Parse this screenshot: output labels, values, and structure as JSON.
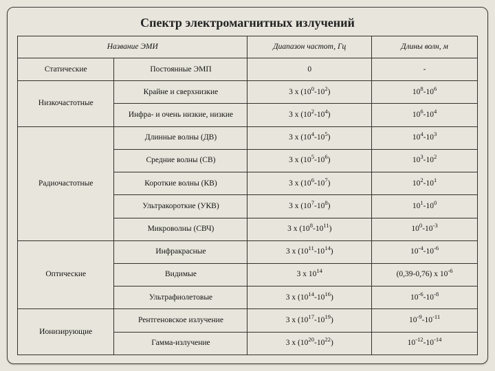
{
  "title": "Спектр электромагнитных излучений",
  "headers": {
    "col12": "Название ЭМИ",
    "col3": "Диапазон частот, Гц",
    "col4": "Длины волн, м"
  },
  "groups": [
    {
      "name": "Статические",
      "rowspan": 1
    },
    {
      "name": "Низкочастотные",
      "rowspan": 2
    },
    {
      "name": "Радиочастотные",
      "rowspan": 5
    },
    {
      "name": "Оптические",
      "rowspan": 3
    },
    {
      "name": "Ионизирующие",
      "rowspan": 2
    }
  ],
  "rows": [
    {
      "sub": "Постоянные ЭМП",
      "freq": "0",
      "wave": "-"
    },
    {
      "sub": "Крайне и сверхнизкие",
      "freq": "3 x (10<sup>0</sup>-10<sup>2</sup>)",
      "wave": "10<sup>8</sup>-10<sup>6</sup>"
    },
    {
      "sub": "Инфра- и очень низкие, низкие",
      "freq": "3 x (10<sup>2</sup>-10<sup>4</sup>)",
      "wave": "10<sup>6</sup>-10<sup>4</sup>"
    },
    {
      "sub": "Длинные волны (ДВ)",
      "freq": "3 x (10<sup>4</sup>-10<sup>5</sup>)",
      "wave": "10<sup>4</sup>-10<sup>3</sup>"
    },
    {
      "sub": "Средние волны (СВ)",
      "freq": "3 x (10<sup>5</sup>-10<sup>6</sup>)",
      "wave": "10<sup>3</sup>-10<sup>2</sup>"
    },
    {
      "sub": "Короткие волны (КВ)",
      "freq": "3 x (10<sup>6</sup>-10<sup>7</sup>)",
      "wave": "10<sup>2</sup>-10<sup>1</sup>"
    },
    {
      "sub": "Ультракороткие (УКВ)",
      "freq": "3 x (10<sup>7</sup>-10<sup>8</sup>)",
      "wave": "10<sup>1</sup>-10<sup>0</sup>"
    },
    {
      "sub": "Микроволны (СВЧ)",
      "freq": "3 x (10<sup>8</sup>-10<sup>11</sup>)",
      "wave": "10<sup>0</sup>-10<sup>-3</sup>"
    },
    {
      "sub": "Инфракрасные",
      "freq": "3 x (10<sup>11</sup>-10<sup>14</sup>)",
      "wave": "10<sup>-4</sup>-10<sup>-6</sup>"
    },
    {
      "sub": "Видимые",
      "freq": "3 x 10<sup>14</sup>",
      "wave": "(0,39-0,76) x 10<sup>-6</sup>"
    },
    {
      "sub": "Ультрафиолетовые",
      "freq": "3 x (10<sup>14</sup>-10<sup>16</sup>)",
      "wave": "10<sup>-6</sup>-10<sup>-8</sup>"
    },
    {
      "sub": "Рентгеновское излучение",
      "freq": "3 x (10<sup>17</sup>-10<sup>19</sup>)",
      "wave": "10<sup>-9</sup>-10<sup>-11</sup>"
    },
    {
      "sub": "Гамма-излучение",
      "freq": "3 x (10<sup>20</sup>-10<sup>22</sup>)",
      "wave": "10<sup>-12</sup>-10<sup>-14</sup>"
    }
  ],
  "style": {
    "page_bg": "#e8e6dc",
    "border_color": "#2f2f2b",
    "title_fontsize": 18,
    "cell_fontsize": 11.5,
    "frame_radius": 10
  }
}
